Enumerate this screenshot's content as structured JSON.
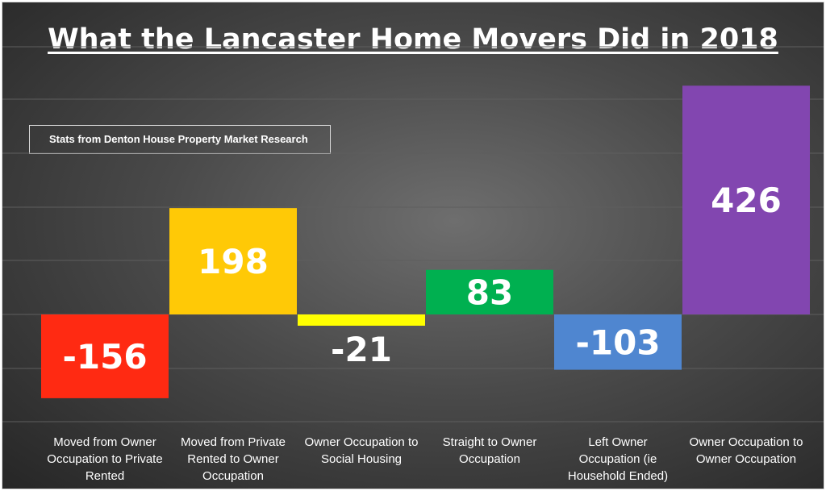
{
  "chart_data": {
    "type": "bar",
    "title": "What the Lancaster Home Movers Did in 2018",
    "subtitle": "Stats from Denton House Property Market Research",
    "categories": [
      "Moved from Owner Occupation to Private Rented",
      "Moved from Private Rented to Owner Occupation",
      "Owner Occupation to Social Housing",
      "Straight to Owner Occupation",
      "Left Owner Occupation (ie Household Ended)",
      "Owner Occupation to Owner Occupation"
    ],
    "category_lines": [
      [
        "Moved from Owner",
        "Occupation to Private",
        "Rented"
      ],
      [
        "Moved from Private",
        "Rented to Owner",
        "Occupation"
      ],
      [
        "Owner Occupation to",
        "Social Housing"
      ],
      [
        "Straight to Owner",
        "Occupation"
      ],
      [
        "Left Owner",
        "Occupation (ie",
        "Household Ended)"
      ],
      [
        "Owner Occupation to",
        "Owner Occupation"
      ]
    ],
    "values": [
      -156,
      198,
      -21,
      83,
      -103,
      426
    ],
    "colors": [
      "#ff2a12",
      "#ffc906",
      "#ffff00",
      "#00b050",
      "#4f86d0",
      "#8246b0"
    ],
    "ylim": [
      -200,
      450
    ],
    "grid": true
  }
}
